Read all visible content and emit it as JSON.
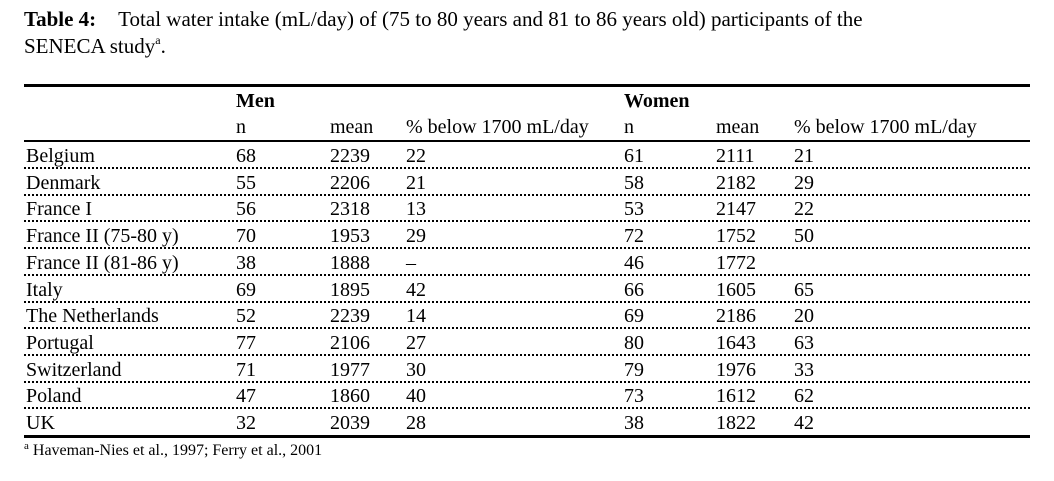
{
  "caption": {
    "label": "Table 4:",
    "text_line1": "Total water intake (mL/day) of (75 to 80 years and 81 to 86 years old) participants of the",
    "text_line2": "SENECA study",
    "superscript": "a",
    "end": "."
  },
  "table": {
    "group_headers": {
      "men": "Men",
      "women": "Women"
    },
    "column_headers": {
      "men_n": "n",
      "men_mean": "mean",
      "men_pct": "% below 1700 mL/day",
      "women_n": "n",
      "women_mean": "mean",
      "women_pct": "% below 1700 mL/day"
    },
    "rows": [
      {
        "country": "Belgium",
        "men_n": "68",
        "men_mean": "2239",
        "men_pct": "22",
        "women_n": "61",
        "women_mean": "2111",
        "women_pct": "21"
      },
      {
        "country": "Denmark",
        "men_n": "55",
        "men_mean": "2206",
        "men_pct": "21",
        "women_n": "58",
        "women_mean": "2182",
        "women_pct": "29"
      },
      {
        "country": "France I",
        "men_n": "56",
        "men_mean": "2318",
        "men_pct": "13",
        "women_n": "53",
        "women_mean": "2147",
        "women_pct": "22"
      },
      {
        "country": "France II (75-80 y)",
        "men_n": "70",
        "men_mean": "1953",
        "men_pct": "29",
        "women_n": "72",
        "women_mean": "1752",
        "women_pct": "50"
      },
      {
        "country": "France II (81-86 y)",
        "men_n": "38",
        "men_mean": "1888",
        "men_pct": "–",
        "women_n": "46",
        "women_mean": "1772",
        "women_pct": ""
      },
      {
        "country": "Italy",
        "men_n": "69",
        "men_mean": "1895",
        "men_pct": "42",
        "women_n": "66",
        "women_mean": "1605",
        "women_pct": "65"
      },
      {
        "country": "The Netherlands",
        "men_n": "52",
        "men_mean": "2239",
        "men_pct": "14",
        "women_n": "69",
        "women_mean": "2186",
        "women_pct": "20"
      },
      {
        "country": "Portugal",
        "men_n": "77",
        "men_mean": "2106",
        "men_pct": "27",
        "women_n": "80",
        "women_mean": "1643",
        "women_pct": "63"
      },
      {
        "country": "Switzerland",
        "men_n": "71",
        "men_mean": "1977",
        "men_pct": "30",
        "women_n": "79",
        "women_mean": "1976",
        "women_pct": "33"
      },
      {
        "country": "Poland",
        "men_n": "47",
        "men_mean": "1860",
        "men_pct": "40",
        "women_n": "73",
        "women_mean": "1612",
        "women_pct": "62"
      },
      {
        "country": "UK",
        "men_n": "32",
        "men_mean": "2039",
        "men_pct": "28",
        "women_n": "38",
        "women_mean": "1822",
        "women_pct": "42"
      }
    ]
  },
  "footnote": {
    "marker": "a",
    "text": " Haveman-Nies et al., 1997; Ferry et al., 2001"
  }
}
